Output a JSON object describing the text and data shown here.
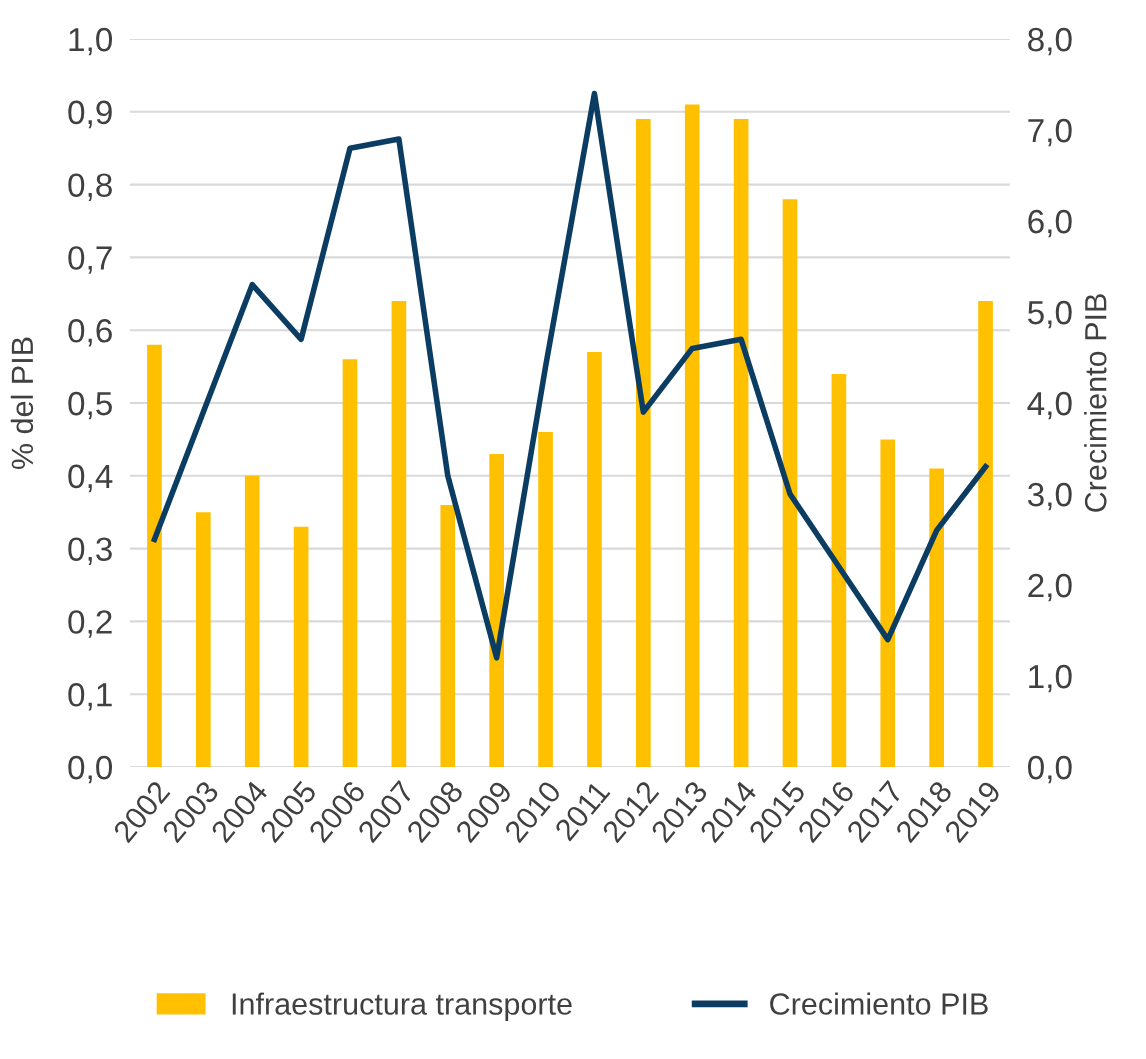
{
  "chart_data": {
    "type": "bar",
    "ylabel": "% del PIB",
    "y2label": "Crecimiento PIB",
    "categories": [
      "2002",
      "2003",
      "2004",
      "2005",
      "2006",
      "2007",
      "2008",
      "2009",
      "2010",
      "2011",
      "2012",
      "2013",
      "2014",
      "2015",
      "2016",
      "2017",
      "2018",
      "2019"
    ],
    "series": [
      {
        "name": "Infraestructura transporte",
        "color": "#ffc000",
        "values": [
          0.58,
          0.35,
          0.4,
          0.33,
          0.56,
          0.64,
          0.36,
          0.43,
          0.46,
          0.57,
          0.89,
          0.91,
          0.89,
          0.78,
          0.54,
          0.45,
          0.41,
          0.64
        ]
      },
      {
        "name": "Crecimiento PIB",
        "type": "line",
        "axis": "y2",
        "color": "#0b3d63",
        "values": [
          2.5,
          3.9,
          5.3,
          4.7,
          6.8,
          6.9,
          3.2,
          1.2,
          4.4,
          7.4,
          3.9,
          4.6,
          4.7,
          3.0,
          2.2,
          1.4,
          2.6,
          3.3
        ]
      }
    ],
    "ylim": [
      0,
      1.0
    ],
    "yticks": [
      {
        "value": 0,
        "label": "0,0"
      },
      {
        "value": 0.1,
        "label": "0,1"
      },
      {
        "value": 0.2,
        "label": "0,2"
      },
      {
        "value": 0.3,
        "label": "0,3"
      },
      {
        "value": 0.4,
        "label": "0,4"
      },
      {
        "value": 0.5,
        "label": "0,5"
      },
      {
        "value": 0.6,
        "label": "0,6"
      },
      {
        "value": 0.7,
        "label": "0,7"
      },
      {
        "value": 0.8,
        "label": "0,8"
      },
      {
        "value": 0.9,
        "label": "0,9"
      },
      {
        "value": 1.0,
        "label": "1,0"
      }
    ],
    "y2lim": [
      0,
      8.0
    ],
    "y2ticks": [
      {
        "value": 0,
        "label": "0,0"
      },
      {
        "value": 1,
        "label": "1,0"
      },
      {
        "value": 2,
        "label": "2,0"
      },
      {
        "value": 3,
        "label": "3,0"
      },
      {
        "value": 4,
        "label": "4,0"
      },
      {
        "value": 5,
        "label": "5,0"
      },
      {
        "value": 6,
        "label": "6,0"
      },
      {
        "value": 7,
        "label": "7,0"
      },
      {
        "value": 8,
        "label": "8,0"
      }
    ],
    "grid": "y",
    "legend": "bottom",
    "marker": "none",
    "line_style": "solid"
  }
}
